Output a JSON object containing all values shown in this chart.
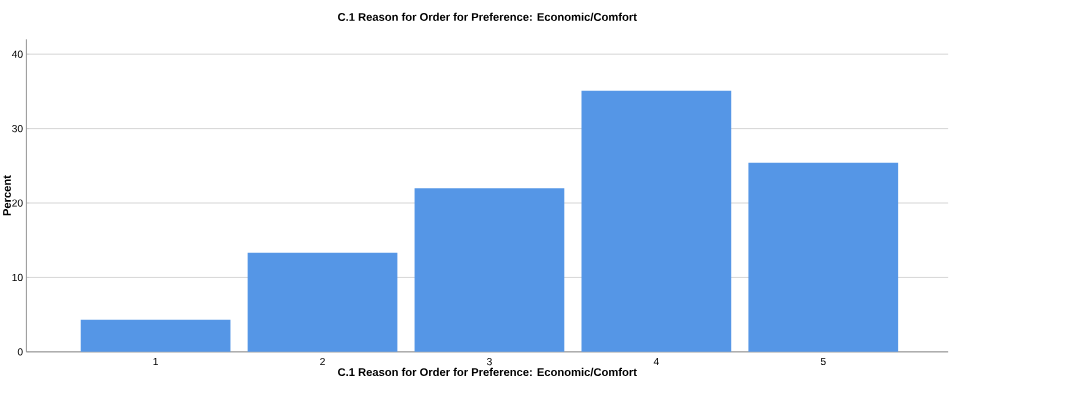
{
  "chart_data": {
    "type": "bar",
    "title": "C.1 Reason for Order for Preference: Economic/Comfort",
    "xlabel": "C.1 Reason for Order for Preference: Economic/Comfort",
    "ylabel": "Percent",
    "categories": [
      "1",
      "2",
      "3",
      "4",
      "5"
    ],
    "values": [
      4.3,
      13.3,
      22.0,
      35.1,
      25.4
    ],
    "color": "#5596e6",
    "ylim": [
      0,
      42
    ],
    "yticks": [
      0,
      10,
      20,
      30,
      40
    ],
    "grid": "y"
  }
}
